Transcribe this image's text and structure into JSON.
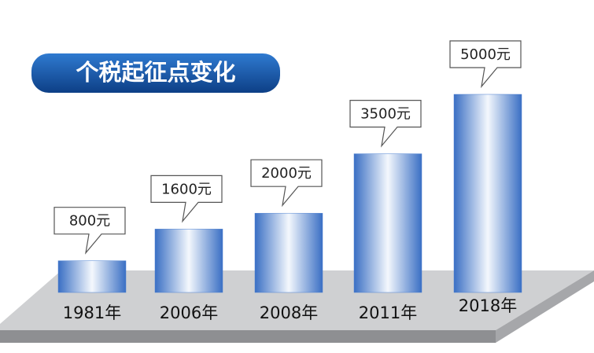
{
  "chart_data": {
    "type": "bar",
    "title": "个税起征点变化",
    "categories": [
      "1981年",
      "2006年",
      "2008年",
      "2011年",
      "2018年"
    ],
    "values": [
      800,
      1600,
      2000,
      3500,
      5000
    ],
    "value_labels": [
      "800元",
      "1600元",
      "2000元",
      "3500元",
      "5000元"
    ],
    "color": "#4a7fd0"
  }
}
